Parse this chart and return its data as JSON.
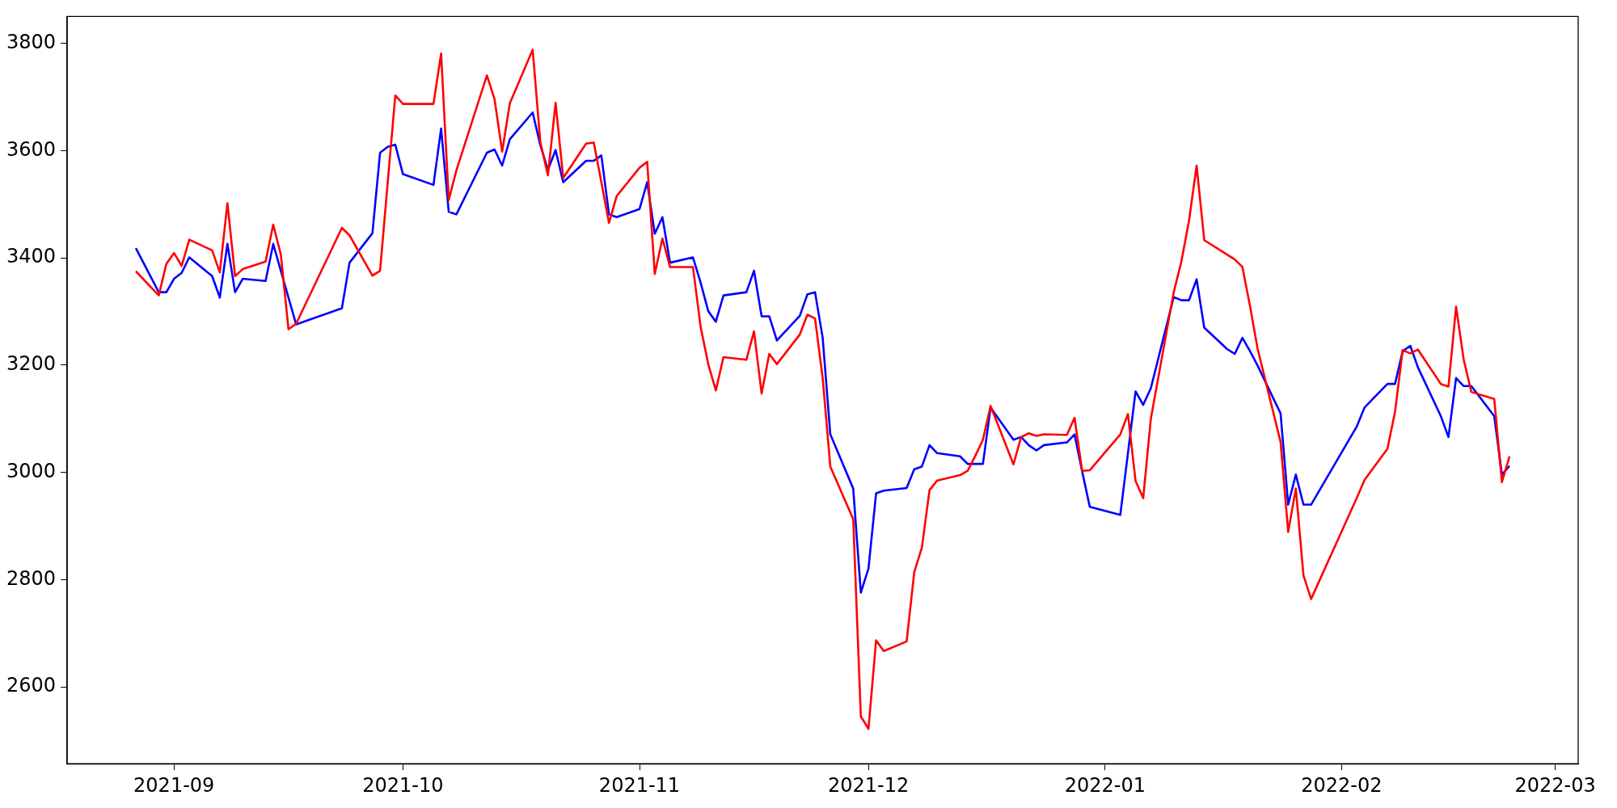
{
  "chart_data": {
    "type": "line",
    "x": [
      "2021-08-27",
      "2021-08-30",
      "2021-08-31",
      "2021-09-01",
      "2021-09-02",
      "2021-09-03",
      "2021-09-06",
      "2021-09-07",
      "2021-09-08",
      "2021-09-09",
      "2021-09-10",
      "2021-09-13",
      "2021-09-14",
      "2021-09-15",
      "2021-09-16",
      "2021-09-17",
      "2021-09-23",
      "2021-09-24",
      "2021-09-27",
      "2021-09-28",
      "2021-09-29",
      "2021-09-30",
      "2021-10-01",
      "2021-10-05",
      "2021-10-06",
      "2021-10-07",
      "2021-10-08",
      "2021-10-12",
      "2021-10-13",
      "2021-10-14",
      "2021-10-15",
      "2021-10-18",
      "2021-10-19",
      "2021-10-20",
      "2021-10-21",
      "2021-10-22",
      "2021-10-25",
      "2021-10-26",
      "2021-10-27",
      "2021-10-28",
      "2021-10-29",
      "2021-11-01",
      "2021-11-02",
      "2021-11-03",
      "2021-11-04",
      "2021-11-05",
      "2021-11-08",
      "2021-11-09",
      "2021-11-10",
      "2021-11-11",
      "2021-11-12",
      "2021-11-15",
      "2021-11-16",
      "2021-11-17",
      "2021-11-18",
      "2021-11-19",
      "2021-11-22",
      "2021-11-23",
      "2021-11-24",
      "2021-11-25",
      "2021-11-26",
      "2021-11-29",
      "2021-11-30",
      "2021-12-01",
      "2021-12-02",
      "2021-12-03",
      "2021-12-06",
      "2021-12-07",
      "2021-12-08",
      "2021-12-09",
      "2021-12-10",
      "2021-12-13",
      "2021-12-14",
      "2021-12-15",
      "2021-12-16",
      "2021-12-17",
      "2021-12-20",
      "2021-12-21",
      "2021-12-22",
      "2021-12-23",
      "2021-12-24",
      "2021-12-27",
      "2021-12-28",
      "2021-12-29",
      "2021-12-30",
      "2022-01-03",
      "2022-01-04",
      "2022-01-05",
      "2022-01-06",
      "2022-01-07",
      "2022-01-10",
      "2022-01-11",
      "2022-01-12",
      "2022-01-13",
      "2022-01-14",
      "2022-01-17",
      "2022-01-18",
      "2022-01-19",
      "2022-01-20",
      "2022-01-21",
      "2022-01-24",
      "2022-01-25",
      "2022-01-26",
      "2022-01-27",
      "2022-01-28",
      "2022-02-03",
      "2022-02-04",
      "2022-02-07",
      "2022-02-08",
      "2022-02-09",
      "2022-02-10",
      "2022-02-11",
      "2022-02-14",
      "2022-02-15",
      "2022-02-16",
      "2022-02-17",
      "2022-02-18",
      "2022-02-21",
      "2022-02-22",
      "2022-02-23"
    ],
    "series": [
      {
        "color": "#ff0000",
        "values": [
          3375,
          3330,
          3389,
          3409,
          3385,
          3434,
          3414,
          3373,
          3502,
          3366,
          3379,
          3393,
          3462,
          3406,
          3267,
          3277,
          3456,
          3442,
          3367,
          3376,
          3540,
          3703,
          3687,
          3687,
          3781,
          3508,
          3563,
          3740,
          3696,
          3598,
          3688,
          3788,
          3616,
          3554,
          3689,
          3549,
          3613,
          3615,
          3541,
          3465,
          3515,
          3568,
          3579,
          3370,
          3436,
          3383,
          3383,
          3272,
          3202,
          3153,
          3215,
          3210,
          3263,
          3147,
          3221,
          3202,
          3257,
          3294,
          3287,
          3176,
          3011,
          2913,
          2545,
          2522,
          2687,
          2667,
          2685,
          2814,
          2860,
          2967,
          2985,
          2995,
          3003,
          3031,
          3061,
          3124,
          3015,
          3066,
          3073,
          3068,
          3071,
          3070,
          3102,
          3003,
          3004,
          3071,
          3109,
          2984,
          2952,
          3100,
          3336,
          3393,
          3469,
          3572,
          3433,
          3406,
          3397,
          3383,
          3310,
          3230,
          3057,
          2889,
          2970,
          2808,
          2764,
          2953,
          2986,
          3044,
          3113,
          3228,
          3222,
          3229,
          3165,
          3160,
          3309,
          3210,
          3150,
          3137,
          2982,
          3030
        ]
      },
      {
        "color": "#0000ff",
        "values": [
          3418,
          3336,
          3336,
          3361,
          3372,
          3401,
          3366,
          3326,
          3426,
          3336,
          3361,
          3357,
          3426,
          3376,
          3326,
          3276,
          3306,
          3391,
          3446,
          3596,
          3607,
          3611,
          3556,
          3536,
          3641,
          3486,
          3481,
          3596,
          3602,
          3572,
          3621,
          3671,
          3610,
          3564,
          3601,
          3541,
          3581,
          3581,
          3591,
          3481,
          3476,
          3491,
          3541,
          3445,
          3476,
          3391,
          3401,
          3354,
          3301,
          3281,
          3330,
          3336,
          3376,
          3291,
          3291,
          3246,
          3292,
          3332,
          3336,
          3251,
          3071,
          2970,
          2776,
          2821,
          2961,
          2966,
          2971,
          3006,
          3011,
          3051,
          3036,
          3030,
          3016,
          3016,
          3016,
          3121,
          3061,
          3066,
          3051,
          3041,
          3051,
          3056,
          3071,
          3002,
          2936,
          2921,
          3036,
          3151,
          3126,
          3157,
          3327,
          3321,
          3321,
          3360,
          3270,
          3230,
          3221,
          3251,
          3226,
          3199,
          3110,
          2940,
          2996,
          2940,
          2940,
          3086,
          3121,
          3165,
          3165,
          3226,
          3236,
          3196,
          3105,
          3066,
          3176,
          3161,
          3161,
          3105,
          2996,
          3012
        ]
      }
    ],
    "xlim": [
      "2021-08-18",
      "2022-03-04"
    ],
    "xticks": [
      {
        "value": "2021-09-01",
        "label": "2021-09"
      },
      {
        "value": "2021-10-01",
        "label": "2021-10"
      },
      {
        "value": "2021-11-01",
        "label": "2021-11"
      },
      {
        "value": "2021-12-01",
        "label": "2021-12"
      },
      {
        "value": "2022-01-01",
        "label": "2022-01"
      },
      {
        "value": "2022-02-01",
        "label": "2022-02"
      },
      {
        "value": "2022-03-01",
        "label": "2022-03"
      }
    ],
    "ylim": [
      2457,
      3850
    ],
    "yticks": [
      2600,
      2800,
      3000,
      3200,
      3400,
      3600,
      3800
    ]
  }
}
